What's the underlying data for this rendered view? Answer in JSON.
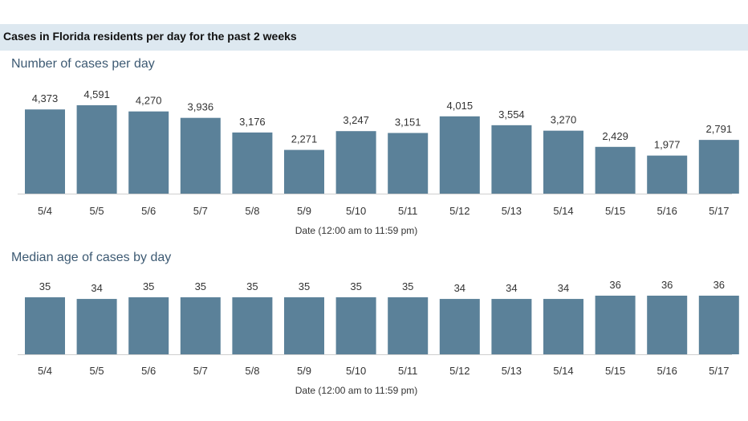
{
  "header": {
    "title": "Cases in Florida residents per day for the past 2 weeks",
    "bar_color": "#dde8f0"
  },
  "chart_data": [
    {
      "type": "bar",
      "title": "Number of cases per day",
      "xlabel": "Date (12:00 am to 11:59 pm)",
      "ylabel": "",
      "categories": [
        "5/4",
        "5/5",
        "5/6",
        "5/7",
        "5/8",
        "5/9",
        "5/10",
        "5/11",
        "5/12",
        "5/13",
        "5/14",
        "5/15",
        "5/16",
        "5/17"
      ],
      "values": [
        4373,
        4591,
        4270,
        3936,
        3176,
        2271,
        3247,
        3151,
        4015,
        3554,
        3270,
        2429,
        1977,
        2791
      ],
      "value_labels": [
        "4,373",
        "4,591",
        "4,270",
        "3,936",
        "3,176",
        "2,271",
        "3,247",
        "3,151",
        "4,015",
        "3,554",
        "3,270",
        "2,429",
        "1,977",
        "2,791"
      ],
      "ylim": [
        0,
        4591
      ],
      "grid": false,
      "color": "#5b8199"
    },
    {
      "type": "bar",
      "title": "Median age of cases by day",
      "xlabel": "Date (12:00 am to 11:59 pm)",
      "ylabel": "",
      "categories": [
        "5/4",
        "5/5",
        "5/6",
        "5/7",
        "5/8",
        "5/9",
        "5/10",
        "5/11",
        "5/12",
        "5/13",
        "5/14",
        "5/15",
        "5/16",
        "5/17"
      ],
      "values": [
        35,
        34,
        35,
        35,
        35,
        35,
        35,
        35,
        34,
        34,
        34,
        36,
        36,
        36
      ],
      "value_labels": [
        "35",
        "34",
        "35",
        "35",
        "35",
        "35",
        "35",
        "35",
        "34",
        "34",
        "34",
        "36",
        "36",
        "36"
      ],
      "ylim": [
        0,
        36
      ],
      "grid": false,
      "color": "#5b8199"
    }
  ]
}
